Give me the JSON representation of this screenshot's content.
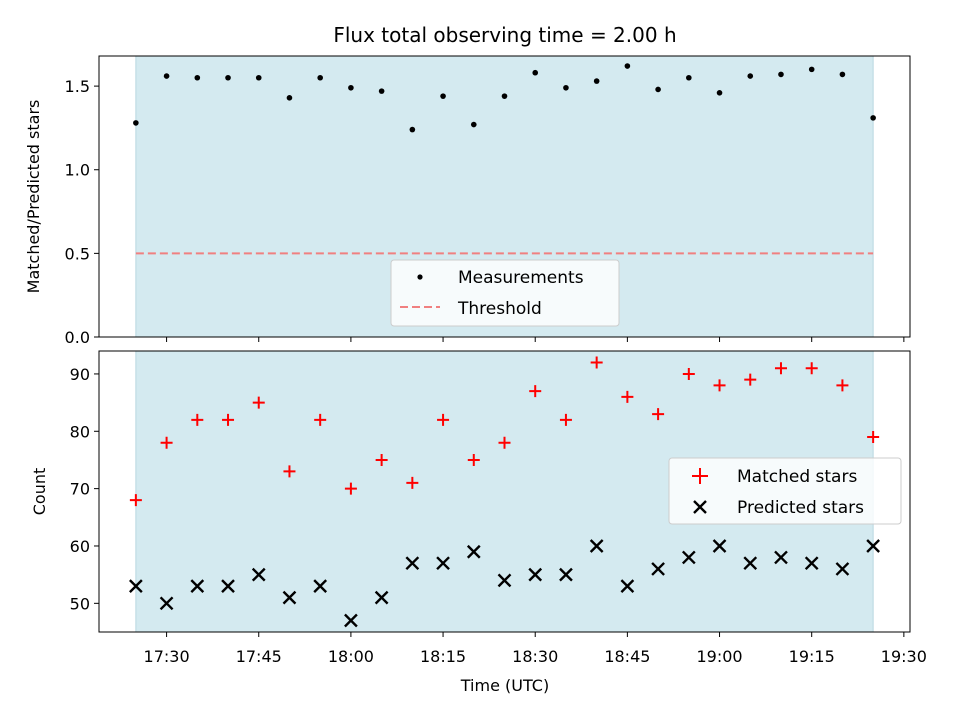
{
  "chart_data": [
    {
      "type": "scatter",
      "title": "Flux total observing time = 2.00 h",
      "xlabel": "",
      "ylabel": "Matched/Predicted stars",
      "ylim": [
        0,
        1.68
      ],
      "yticks": [
        "0.0",
        "0.5",
        "1.0",
        "1.5"
      ],
      "shaded_span": {
        "start": "17:25",
        "end": "19:25",
        "color": "#d4eaf0"
      },
      "threshold": {
        "name": "Threshold",
        "value": 0.5,
        "color": "#f08080",
        "style": "dashed"
      },
      "legend": {
        "position": "lower center",
        "entries": [
          "Measurements",
          "Threshold"
        ]
      },
      "series": [
        {
          "name": "Measurements",
          "marker": "dot",
          "color": "#000000",
          "x": [
            "17:25",
            "17:30",
            "17:35",
            "17:40",
            "17:45",
            "17:50",
            "17:55",
            "18:00",
            "18:05",
            "18:10",
            "18:15",
            "18:20",
            "18:25",
            "18:30",
            "18:35",
            "18:40",
            "18:45",
            "18:50",
            "18:55",
            "19:00",
            "19:05",
            "19:10",
            "19:15",
            "19:20",
            "19:25"
          ],
          "values": [
            1.28,
            1.56,
            1.55,
            1.55,
            1.55,
            1.43,
            1.55,
            1.49,
            1.47,
            1.24,
            1.44,
            1.27,
            1.44,
            1.58,
            1.49,
            1.53,
            1.62,
            1.48,
            1.55,
            1.46,
            1.56,
            1.57,
            1.6,
            1.57,
            1.31
          ]
        }
      ]
    },
    {
      "type": "scatter",
      "title": "",
      "xlabel": "Time (UTC)",
      "ylabel": "Count",
      "ylim": [
        45,
        94
      ],
      "yticks": [
        "50",
        "60",
        "70",
        "80",
        "90"
      ],
      "xlim": [
        "17:19",
        "19:31"
      ],
      "xticks": [
        "17:30",
        "17:45",
        "18:00",
        "18:15",
        "18:30",
        "18:45",
        "19:00",
        "19:15",
        "19:30"
      ],
      "shaded_span": {
        "start": "17:25",
        "end": "19:25",
        "color": "#d4eaf0"
      },
      "legend": {
        "position": "center right",
        "entries": [
          "Matched stars",
          "Predicted stars"
        ]
      },
      "series": [
        {
          "name": "Matched stars",
          "marker": "plus",
          "color": "#ff0000",
          "x": [
            "17:25",
            "17:30",
            "17:35",
            "17:40",
            "17:45",
            "17:50",
            "17:55",
            "18:00",
            "18:05",
            "18:10",
            "18:15",
            "18:20",
            "18:25",
            "18:30",
            "18:35",
            "18:40",
            "18:45",
            "18:50",
            "18:55",
            "19:00",
            "19:05",
            "19:10",
            "19:15",
            "19:20",
            "19:25"
          ],
          "values": [
            68,
            78,
            82,
            82,
            85,
            73,
            82,
            70,
            75,
            71,
            82,
            75,
            78,
            87,
            82,
            92,
            86,
            83,
            90,
            88,
            89,
            91,
            91,
            88,
            79
          ]
        },
        {
          "name": "Predicted stars",
          "marker": "x",
          "color": "#000000",
          "x": [
            "17:25",
            "17:30",
            "17:35",
            "17:40",
            "17:45",
            "17:50",
            "17:55",
            "18:00",
            "18:05",
            "18:10",
            "18:15",
            "18:20",
            "18:25",
            "18:30",
            "18:35",
            "18:40",
            "18:45",
            "18:50",
            "18:55",
            "19:00",
            "19:05",
            "19:10",
            "19:15",
            "19:20",
            "19:25"
          ],
          "values": [
            53,
            50,
            53,
            53,
            55,
            51,
            53,
            47,
            51,
            57,
            57,
            59,
            54,
            55,
            55,
            60,
            53,
            56,
            58,
            60,
            57,
            58,
            57,
            56,
            60
          ]
        }
      ]
    }
  ]
}
